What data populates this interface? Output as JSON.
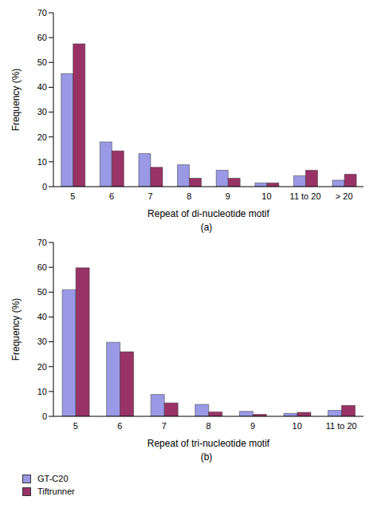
{
  "chart_data": [
    {
      "type": "bar",
      "title": "(a)",
      "x_label": "Repeat of di-nucleotide motif",
      "y_label": "Frequency (%)",
      "categories": [
        "5",
        "6",
        "7",
        "8",
        "9",
        "10",
        "11 to 20",
        "> 20"
      ],
      "series": [
        {
          "name": "GT-C20",
          "color": "#9999e6",
          "values": [
            45.5,
            18,
            13.3,
            8.8,
            6.6,
            1.5,
            4.4,
            2.6
          ]
        },
        {
          "name": "Tiftrunner",
          "color": "#993366",
          "values": [
            57.5,
            14.4,
            7.8,
            3.4,
            3.4,
            1.5,
            6.6,
            5.0
          ]
        }
      ],
      "ylim": [
        0,
        70
      ],
      "yticks": [
        0,
        10,
        20,
        30,
        40,
        50,
        60,
        70
      ],
      "grid": false
    },
    {
      "type": "bar",
      "title": "(b)",
      "x_label": "Repeat of tri-nucleotide motif",
      "y_label": "Frequency (%)",
      "categories": [
        "5",
        "6",
        "7",
        "8",
        "9",
        "10",
        "11 to 20"
      ],
      "series": [
        {
          "name": "GT-C20",
          "color": "#9999e6",
          "values": [
            51,
            29.8,
            8.8,
            4.8,
            2.0,
            1.2,
            2.4
          ]
        },
        {
          "name": "Tiftrunner",
          "color": "#993366",
          "values": [
            59.8,
            26,
            5.4,
            1.8,
            0.8,
            1.6,
            4.4
          ]
        }
      ],
      "ylim": [
        0,
        70
      ],
      "yticks": [
        0,
        10,
        20,
        30,
        40,
        50,
        60,
        70
      ],
      "grid": false,
      "legend": "bottom"
    }
  ]
}
